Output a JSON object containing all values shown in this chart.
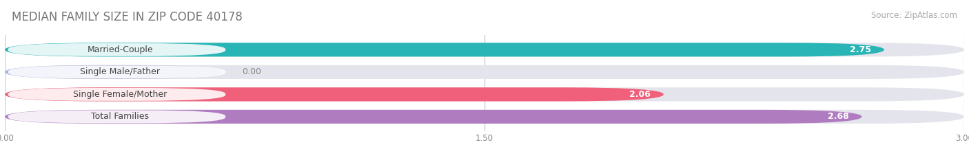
{
  "title": "MEDIAN FAMILY SIZE IN ZIP CODE 40178",
  "source": "Source: ZipAtlas.com",
  "categories": [
    "Married-Couple",
    "Single Male/Father",
    "Single Female/Mother",
    "Total Families"
  ],
  "values": [
    2.75,
    0.0,
    2.06,
    2.68
  ],
  "bar_colors": [
    "#29b5b5",
    "#aab4d8",
    "#f0607a",
    "#b07cc0"
  ],
  "bar_bg_color": "#e4e4ec",
  "xlim": [
    0,
    3.0
  ],
  "xticks": [
    0.0,
    1.5,
    3.0
  ],
  "xtick_labels": [
    "0.00",
    "1.50",
    "3.00"
  ],
  "value_labels": [
    "2.75",
    "0.00",
    "2.06",
    "2.68"
  ],
  "title_fontsize": 12,
  "source_fontsize": 8.5,
  "label_fontsize": 9,
  "value_fontsize": 9,
  "background_color": "#ffffff",
  "bar_height": 0.62,
  "grid_color": "#ccccdd"
}
